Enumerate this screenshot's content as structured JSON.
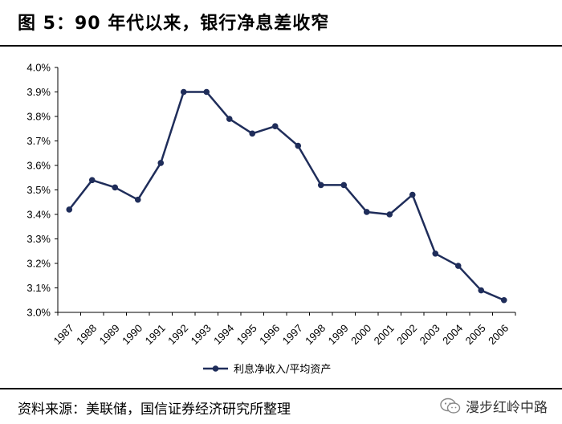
{
  "header": {
    "title": "图 5：90 年代以来，银行净息差收窄"
  },
  "footer": {
    "source": "资料来源：美联储，国信证券经济研究所整理",
    "watermark": "漫步红岭中路"
  },
  "colors": {
    "series": "#1f2d5a",
    "axis": "#000000"
  },
  "icons": {
    "watermark_icon": "wechat-icon"
  },
  "chart_data": {
    "type": "line",
    "title": "",
    "xlabel": "",
    "ylabel": "",
    "categories": [
      "1987",
      "1988",
      "1989",
      "1990",
      "1991",
      "1992",
      "1993",
      "1994",
      "1995",
      "1996",
      "1997",
      "1998",
      "1999",
      "2000",
      "2001",
      "2002",
      "2003",
      "2004",
      "2005",
      "2006"
    ],
    "series": [
      {
        "name": "利息净收入/平均资产",
        "values": [
          3.42,
          3.54,
          3.51,
          3.46,
          3.61,
          3.9,
          3.9,
          3.79,
          3.73,
          3.76,
          3.68,
          3.52,
          3.52,
          3.41,
          3.4,
          3.48,
          3.24,
          3.19,
          3.09,
          3.05
        ]
      }
    ],
    "ylim": [
      3.0,
      4.0
    ],
    "yticks": [
      "3.0%",
      "3.1%",
      "3.2%",
      "3.3%",
      "3.4%",
      "3.5%",
      "3.6%",
      "3.7%",
      "3.8%",
      "3.9%",
      "4.0%"
    ],
    "grid": false,
    "legend": "bottom"
  }
}
